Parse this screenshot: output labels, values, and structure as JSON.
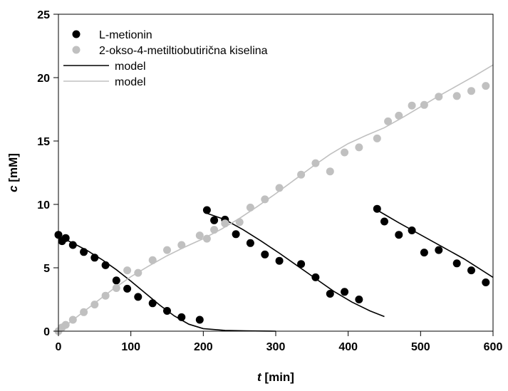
{
  "chart_data": {
    "type": "scatter",
    "xlabel": {
      "var": "t",
      "unit": "[min]"
    },
    "ylabel": {
      "var": "c",
      "unit": "[mM]"
    },
    "xlim": [
      0,
      600
    ],
    "ylim": [
      0,
      25
    ],
    "xticks": [
      0,
      100,
      200,
      300,
      400,
      500,
      600
    ],
    "yticks": [
      0,
      5,
      10,
      15,
      20,
      25
    ],
    "grid": false,
    "legend_position": "top-left",
    "legend": [
      {
        "label": "L-metionin",
        "kind": "marker",
        "color": "#000000"
      },
      {
        "label": "2-okso-4-metiltiobutirična kiselina",
        "kind": "marker",
        "color": "#c0c0c0"
      },
      {
        "label": "model",
        "kind": "line",
        "color": "#000000"
      },
      {
        "label": "model",
        "kind": "line",
        "color": "#c0c0c0"
      }
    ],
    "series": [
      {
        "name": "L-metionin",
        "kind": "scatter",
        "color": "#000000",
        "points": [
          [
            0,
            7.6
          ],
          [
            5,
            7.1
          ],
          [
            10,
            7.35
          ],
          [
            20,
            6.8
          ],
          [
            35,
            6.25
          ],
          [
            50,
            5.8
          ],
          [
            65,
            5.2
          ],
          [
            80,
            4.0
          ],
          [
            95,
            3.35
          ],
          [
            110,
            2.7
          ],
          [
            130,
            2.2
          ],
          [
            150,
            1.6
          ],
          [
            170,
            1.1
          ],
          [
            195,
            0.9
          ],
          [
            205,
            9.55
          ],
          [
            215,
            8.75
          ],
          [
            230,
            8.8
          ],
          [
            245,
            7.65
          ],
          [
            265,
            6.95
          ],
          [
            285,
            6.05
          ],
          [
            305,
            5.55
          ],
          [
            335,
            5.3
          ],
          [
            355,
            4.25
          ],
          [
            375,
            2.95
          ],
          [
            395,
            3.1
          ],
          [
            415,
            2.5
          ],
          [
            440,
            9.65
          ],
          [
            450,
            8.65
          ],
          [
            470,
            7.6
          ],
          [
            488,
            7.95
          ],
          [
            505,
            6.2
          ],
          [
            525,
            6.4
          ],
          [
            550,
            5.35
          ],
          [
            570,
            4.8
          ],
          [
            590,
            3.85
          ]
        ]
      },
      {
        "name": "2-okso-4-metiltiobutirična kiselina",
        "kind": "scatter",
        "color": "#c0c0c0",
        "points": [
          [
            0,
            0.0
          ],
          [
            5,
            0.3
          ],
          [
            10,
            0.5
          ],
          [
            20,
            0.9
          ],
          [
            35,
            1.5
          ],
          [
            50,
            2.1
          ],
          [
            65,
            2.8
          ],
          [
            80,
            3.4
          ],
          [
            95,
            4.8
          ],
          [
            110,
            4.6
          ],
          [
            130,
            5.6
          ],
          [
            150,
            6.4
          ],
          [
            170,
            6.8
          ],
          [
            195,
            7.55
          ],
          [
            205,
            7.3
          ],
          [
            215,
            8.0
          ],
          [
            230,
            8.5
          ],
          [
            250,
            8.6
          ],
          [
            265,
            9.75
          ],
          [
            285,
            10.4
          ],
          [
            305,
            11.3
          ],
          [
            335,
            12.35
          ],
          [
            355,
            13.25
          ],
          [
            375,
            12.6
          ],
          [
            395,
            14.1
          ],
          [
            415,
            14.5
          ],
          [
            440,
            15.2
          ],
          [
            455,
            16.55
          ],
          [
            470,
            17.0
          ],
          [
            488,
            17.8
          ],
          [
            505,
            17.85
          ],
          [
            525,
            18.5
          ],
          [
            550,
            18.55
          ],
          [
            570,
            18.95
          ],
          [
            590,
            19.35
          ]
        ]
      },
      {
        "name": "model",
        "kind": "line",
        "color": "#000000",
        "segments": [
          [
            [
              0,
              7.5
            ],
            [
              20,
              6.95
            ],
            [
              40,
              6.35
            ],
            [
              60,
              5.65
            ],
            [
              80,
              4.85
            ],
            [
              100,
              3.95
            ],
            [
              120,
              3.0
            ],
            [
              140,
              2.05
            ],
            [
              160,
              1.2
            ],
            [
              180,
              0.55
            ],
            [
              200,
              0.2
            ],
            [
              230,
              0.06
            ],
            [
              260,
              0.02
            ],
            [
              300,
              0.0
            ]
          ],
          [
            [
              205,
              9.3
            ],
            [
              230,
              8.8
            ],
            [
              255,
              8.0
            ],
            [
              280,
              7.1
            ],
            [
              305,
              6.15
            ],
            [
              330,
              5.15
            ],
            [
              355,
              4.15
            ],
            [
              380,
              3.15
            ],
            [
              405,
              2.3
            ],
            [
              430,
              1.6
            ],
            [
              450,
              1.15
            ]
          ],
          [
            [
              440,
              9.55
            ],
            [
              470,
              8.55
            ],
            [
              500,
              7.6
            ],
            [
              530,
              6.65
            ],
            [
              560,
              5.7
            ],
            [
              600,
              4.25
            ]
          ]
        ]
      },
      {
        "name": "model",
        "kind": "line",
        "color": "#c0c0c0",
        "segments": [
          [
            [
              0,
              0.0
            ],
            [
              25,
              1.1
            ],
            [
              50,
              2.2
            ],
            [
              75,
              3.3
            ],
            [
              100,
              4.3
            ],
            [
              125,
              5.15
            ],
            [
              150,
              5.95
            ],
            [
              175,
              6.65
            ],
            [
              200,
              7.3
            ],
            [
              225,
              8.05
            ],
            [
              250,
              8.9
            ],
            [
              275,
              9.85
            ],
            [
              300,
              10.85
            ],
            [
              325,
              11.9
            ],
            [
              350,
              12.95
            ],
            [
              375,
              13.95
            ],
            [
              400,
              14.8
            ],
            [
              425,
              15.45
            ],
            [
              450,
              16.05
            ],
            [
              475,
              16.85
            ],
            [
              500,
              17.7
            ],
            [
              525,
              18.55
            ],
            [
              550,
              19.35
            ],
            [
              575,
              20.15
            ],
            [
              600,
              21.0
            ]
          ]
        ]
      }
    ]
  }
}
